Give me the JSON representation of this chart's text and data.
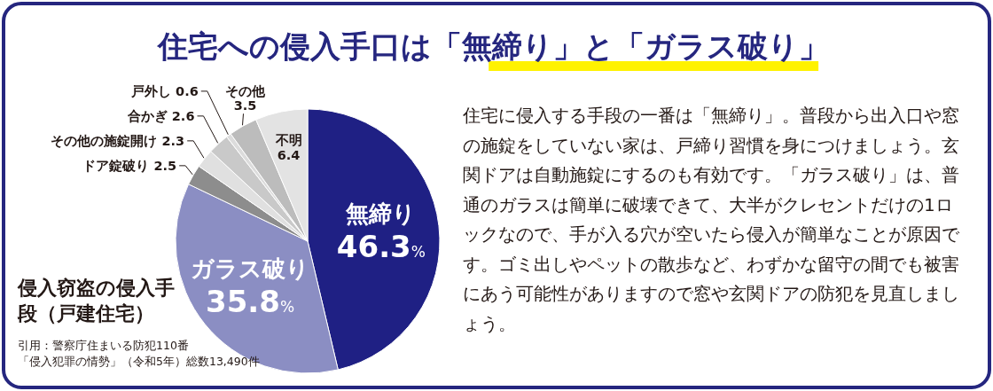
{
  "chart_data": {
    "type": "pie",
    "title": "住宅への侵入手口は「無締り」と「ガラス破り」",
    "subtitle": "侵入窃盗の侵入手段（戸建住宅）",
    "categories": [
      "無締り",
      "ガラス破り",
      "ドア錠破り",
      "その他の施錠開け",
      "合かぎ",
      "戸外し",
      "その他",
      "不明"
    ],
    "values": [
      46.3,
      35.8,
      2.5,
      2.3,
      2.6,
      0.6,
      3.5,
      6.4
    ],
    "colors": [
      "#1f2084",
      "#8b8ec3",
      "#8d8d8d",
      "#e0e0e0",
      "#c9c9c9",
      "#dcdcdc",
      "#bcbcbc",
      "#e3e3e3"
    ],
    "value_labels": [
      "46.3%",
      "35.8%",
      "2.5",
      "2.3",
      "2.6",
      "0.6",
      "3.5",
      "6.4"
    ],
    "annotations": [
      "引用：警察庁住まいる防犯110番",
      "「侵入犯罪の情勢」（令和5年）総数13,490件",
      "住宅に侵入する手段の一番は「無締り」。普段から出入口や窓の施錠をしていない家は、戸締り習慣を身につけましょう。玄関ドアは自動施錠にするのも有効です。「ガラス破り」は、普通のガラスは簡単に破壊できて、大半がクレセントだけの1ロックなので、手が入る穴が空いたら侵入が簡単なことが原因です。ゴミ出しやペットの散歩など、わずかな留守の間でも被害にあう可能性がありますので窓や玄関ドアの防犯を見直しましょう。"
    ]
  }
}
